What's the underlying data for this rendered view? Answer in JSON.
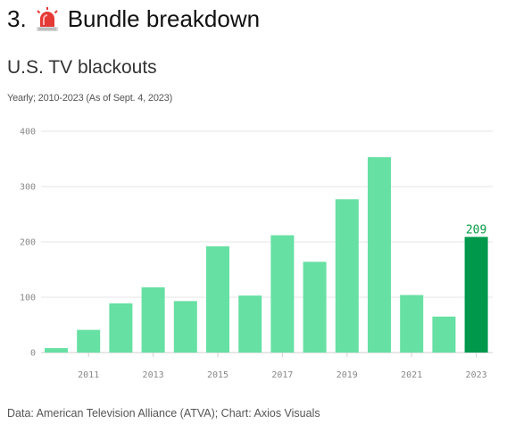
{
  "header": {
    "number": "3.",
    "title": "Bundle breakdown",
    "icon": "siren-icon"
  },
  "chart_data": {
    "type": "bar",
    "title": "U.S. TV blackouts",
    "subtitle": "Yearly; 2010-2023 (As of Sept. 4, 2023)",
    "xlabel": "",
    "ylabel": "",
    "categories": [
      "2010",
      "2011",
      "2012",
      "2013",
      "2014",
      "2015",
      "2016",
      "2017",
      "2018",
      "2019",
      "2020",
      "2021",
      "2022",
      "2023"
    ],
    "values": [
      8,
      41,
      89,
      118,
      93,
      192,
      103,
      212,
      164,
      277,
      353,
      104,
      65,
      209
    ],
    "x_tick_labels": [
      "2011",
      "2013",
      "2015",
      "2017",
      "2019",
      "2021",
      "2023"
    ],
    "y_ticks": [
      0,
      100,
      200,
      300,
      400
    ],
    "ylim": [
      0,
      400
    ],
    "grid": true,
    "highlight": {
      "category": "2023",
      "label": "209"
    },
    "colors": {
      "bar": "#66e0a3",
      "highlight": "#00994c",
      "label": "#0a9b45",
      "grid": "#e6e6e6"
    }
  },
  "footer": {
    "source": "Data: American Television Alliance (ATVA); Chart: Axios Visuals"
  }
}
